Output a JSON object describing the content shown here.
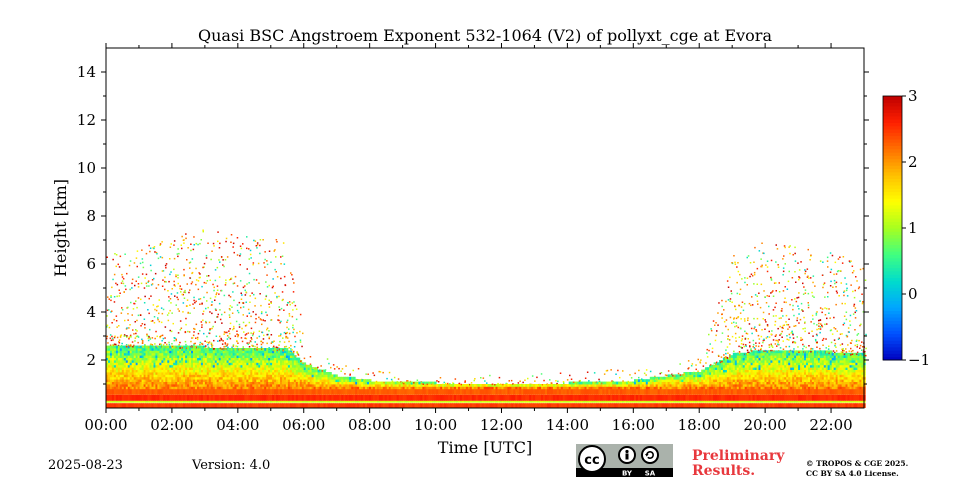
{
  "chart_data": {
    "type": "heatmap",
    "title": "Quasi BSC Angstroem Exponent 532-1064 (V2) of pollyxt_cge at Evora",
    "xlabel": "Time [UTC]",
    "ylabel": "Height [km]",
    "xlim": [
      0,
      23
    ],
    "ylim": [
      0,
      15
    ],
    "x_ticks": [
      "00:00",
      "02:00",
      "04:00",
      "06:00",
      "08:00",
      "10:00",
      "12:00",
      "14:00",
      "16:00",
      "18:00",
      "20:00",
      "22:00"
    ],
    "y_ticks": [
      "2",
      "4",
      "6",
      "8",
      "10",
      "12",
      "14"
    ],
    "colorbar": {
      "min": -1,
      "max": 3,
      "ticks": [
        "−1",
        "0",
        "1",
        "2",
        "3"
      ],
      "colormap": [
        "#0000bf",
        "#0050ff",
        "#00a6ff",
        "#00dccc",
        "#40ff80",
        "#a6ff20",
        "#ffff00",
        "#ffc000",
        "#ff7000",
        "#ff2000",
        "#bf0000"
      ]
    },
    "layer_profile": {
      "hours": [
        0,
        3,
        5.5,
        6,
        7,
        8,
        10,
        12,
        14,
        16,
        18,
        19,
        20,
        22,
        23
      ],
      "boundary_layer_top_km": [
        2.6,
        2.5,
        2.4,
        1.8,
        1.3,
        1.1,
        1.0,
        1.0,
        1.0,
        1.1,
        1.5,
        2.2,
        2.4,
        2.3,
        2.2
      ],
      "noise_top_km": [
        6.5,
        7.5,
        7.0,
        2.4,
        1.9,
        1.6,
        1.4,
        1.4,
        1.5,
        1.7,
        2.2,
        6.5,
        7.0,
        6.5,
        6.0
      ]
    }
  },
  "footer": {
    "date": "2025-08-23",
    "version": "Version: 4.0",
    "preliminary_line1": "Preliminary",
    "preliminary_line2": "Results.",
    "copyright_line1": "© TROPOS & CGE 2025.",
    "copyright_line2": "CC BY SA 4.0 License.",
    "license_badge": {
      "cc": "cc",
      "by": "BY",
      "sa": "SA"
    }
  }
}
